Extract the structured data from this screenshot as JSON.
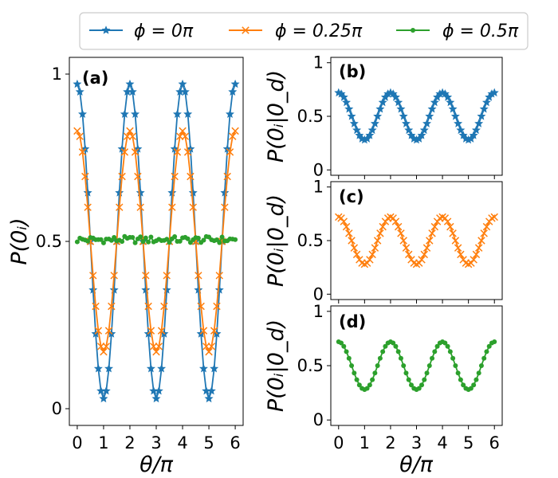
{
  "colors": {
    "phi0": "#1f77b4",
    "phi025": "#ff7f0e",
    "phi05": "#2ca02c"
  },
  "legend": {
    "items": [
      {
        "label": "ϕ = 0π",
        "marker": "star",
        "color": "#1f77b4"
      },
      {
        "label": "ϕ = 0.25π",
        "marker": "x",
        "color": "#ff7f0e"
      },
      {
        "label": "ϕ = 0.5π",
        "marker": "dot",
        "color": "#2ca02c"
      }
    ],
    "placement": "top-center"
  },
  "chart_data": [
    {
      "id": "a",
      "panel_label": "(a)",
      "type": "line",
      "xlabel": "θ/π",
      "ylabel": "P(0ᵢ)",
      "xlim": [
        -0.3,
        6.3
      ],
      "ylim": [
        -0.05,
        1.05
      ],
      "xticks": [
        "0",
        "1",
        "2",
        "3",
        "4",
        "5",
        "6"
      ],
      "yticks": [
        "0",
        "0.5",
        "1"
      ],
      "ytick_values": [
        0,
        0.5,
        1
      ],
      "series": [
        {
          "name": "ϕ = 0π",
          "marker": "star",
          "color": "#1f77b4",
          "curve": "0.5 + 0.47·cos(πθ)",
          "amplitude": 0.47,
          "offset": 0.5,
          "period": 2,
          "x_range": [
            0,
            6
          ],
          "n_points": 61
        },
        {
          "name": "ϕ = 0.25π",
          "marker": "x",
          "color": "#ff7f0e",
          "curve": "0.5 + 0.33·cos(πθ)",
          "amplitude": 0.33,
          "offset": 0.5,
          "period": 2,
          "x_range": [
            0,
            6
          ],
          "n_points": 61
        },
        {
          "name": "ϕ = 0.5π",
          "marker": "dot",
          "color": "#2ca02c",
          "curve": "≈0.5 (flat, small noise)",
          "amplitude": 0.0,
          "offset": 0.505,
          "period": 2,
          "x_range": [
            0,
            6
          ],
          "n_points": 61
        }
      ]
    },
    {
      "id": "b",
      "panel_label": "(b)",
      "type": "line",
      "xlabel": "",
      "ylabel": "P(0ᵢ|0_d)",
      "xlim": [
        -0.3,
        6.3
      ],
      "ylim": [
        -0.05,
        1.05
      ],
      "yticks": [
        "0",
        "0.5",
        "1"
      ],
      "ytick_values": [
        0,
        0.5,
        1
      ],
      "series": [
        {
          "name": "ϕ = 0π",
          "marker": "star",
          "color": "#1f77b4",
          "curve": "0.5 + 0.22·cos(πθ)",
          "amplitude": 0.22,
          "offset": 0.5,
          "period": 2,
          "x_range": [
            0,
            6
          ],
          "n_points": 61
        }
      ]
    },
    {
      "id": "c",
      "panel_label": "(c)",
      "type": "line",
      "xlabel": "",
      "ylabel": "P(0ᵢ|0_d)",
      "xlim": [
        -0.3,
        6.3
      ],
      "ylim": [
        -0.05,
        1.05
      ],
      "yticks": [
        "0",
        "0.5",
        "1"
      ],
      "ytick_values": [
        0,
        0.5,
        1
      ],
      "series": [
        {
          "name": "ϕ = 0.25π",
          "marker": "x",
          "color": "#ff7f0e",
          "curve": "0.5 + 0.22·cos(πθ)",
          "amplitude": 0.22,
          "offset": 0.5,
          "period": 2,
          "x_range": [
            0,
            6
          ],
          "n_points": 61
        }
      ]
    },
    {
      "id": "d",
      "panel_label": "(d)",
      "type": "line",
      "xlabel": "θ/π",
      "ylabel": "P(0ᵢ|0_d)",
      "xlim": [
        -0.3,
        6.3
      ],
      "ylim": [
        -0.05,
        1.05
      ],
      "xticks": [
        "0",
        "1",
        "2",
        "3",
        "4",
        "5",
        "6"
      ],
      "yticks": [
        "0",
        "0.5",
        "1"
      ],
      "ytick_values": [
        0,
        0.5,
        1
      ],
      "series": [
        {
          "name": "ϕ = 0.5π",
          "marker": "dot",
          "color": "#2ca02c",
          "curve": "0.5 + 0.22·cos(πθ)",
          "amplitude": 0.22,
          "offset": 0.5,
          "period": 2,
          "x_range": [
            0,
            6
          ],
          "n_points": 61
        }
      ]
    }
  ]
}
